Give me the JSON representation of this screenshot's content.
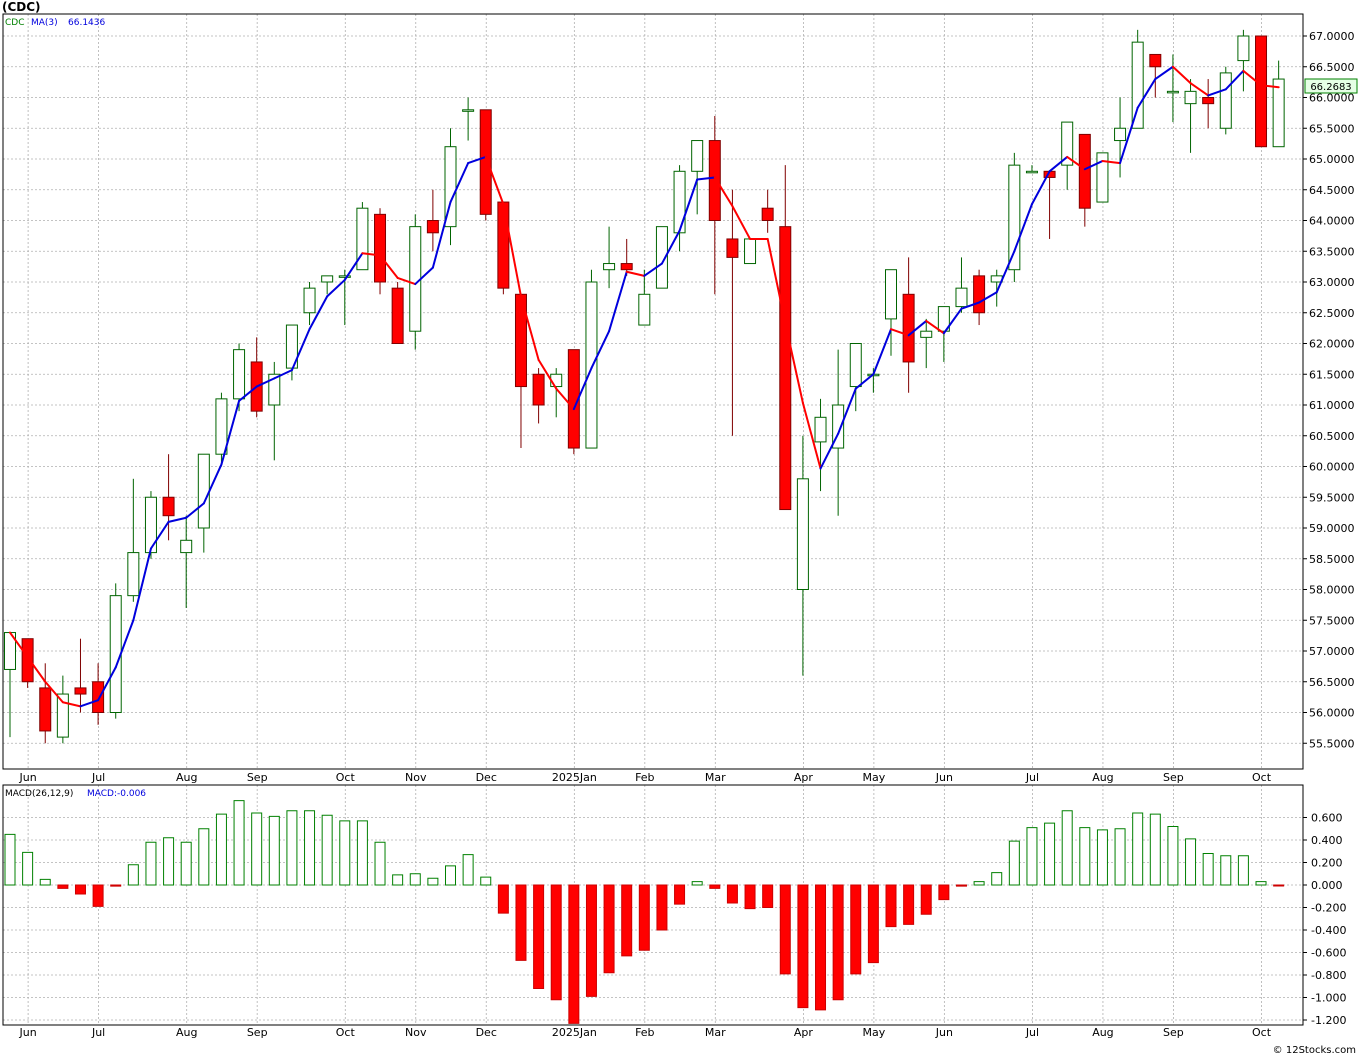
{
  "chart_data": [
    {
      "type": "candlestick",
      "title": "(CDC)",
      "legend": {
        "symbol": "CDC",
        "ma_label": "MA(3)",
        "ma_value": "66.1436"
      },
      "last_price_label": "66.2683",
      "yticks": [
        "67.0000",
        "66.5000",
        "66.0000",
        "65.5000",
        "65.0000",
        "64.5000",
        "64.0000",
        "63.5000",
        "63.0000",
        "62.5000",
        "62.0000",
        "61.5000",
        "61.0000",
        "60.5000",
        "60.0000",
        "59.5000",
        "59.0000",
        "58.5000",
        "58.0000",
        "57.5000",
        "57.0000",
        "56.5000",
        "56.0000",
        "55.5000"
      ],
      "ylim": [
        55.45,
        67.25
      ],
      "months": [
        {
          "label": "Jun",
          "index": 1
        },
        {
          "label": "Jul",
          "index": 5
        },
        {
          "label": "Aug",
          "index": 10
        },
        {
          "label": "Sep",
          "index": 14
        },
        {
          "label": "Oct",
          "index": 19
        },
        {
          "label": "Nov",
          "index": 23
        },
        {
          "label": "Dec",
          "index": 27
        },
        {
          "label": "2025Jan",
          "index": 32
        },
        {
          "label": "Feb",
          "index": 36
        },
        {
          "label": "Mar",
          "index": 40
        },
        {
          "label": "Apr",
          "index": 45
        },
        {
          "label": "May",
          "index": 49
        },
        {
          "label": "Jun",
          "index": 53
        },
        {
          "label": "Jul",
          "index": 58
        },
        {
          "label": "Aug",
          "index": 62
        },
        {
          "label": "Sep",
          "index": 66
        },
        {
          "label": "Oct",
          "index": 71
        }
      ],
      "candles": [
        {
          "o": 56.7,
          "h": 57.3,
          "l": 55.6,
          "c": 57.3
        },
        {
          "o": 57.2,
          "h": 57.2,
          "l": 56.4,
          "c": 56.5
        },
        {
          "o": 56.4,
          "h": 56.8,
          "l": 55.5,
          "c": 55.7
        },
        {
          "o": 55.6,
          "h": 56.6,
          "l": 55.5,
          "c": 56.3
        },
        {
          "o": 56.4,
          "h": 57.2,
          "l": 56.0,
          "c": 56.3
        },
        {
          "o": 56.5,
          "h": 56.8,
          "l": 55.8,
          "c": 56.0
        },
        {
          "o": 56.0,
          "h": 58.1,
          "l": 55.9,
          "c": 57.9
        },
        {
          "o": 57.9,
          "h": 59.8,
          "l": 57.8,
          "c": 58.6
        },
        {
          "o": 58.6,
          "h": 59.6,
          "l": 58.5,
          "c": 59.5
        },
        {
          "o": 59.5,
          "h": 60.2,
          "l": 58.8,
          "c": 59.2
        },
        {
          "o": 58.6,
          "h": 59.2,
          "l": 57.7,
          "c": 58.8
        },
        {
          "o": 59.0,
          "h": 60.2,
          "l": 58.6,
          "c": 60.2
        },
        {
          "o": 60.2,
          "h": 61.2,
          "l": 60.0,
          "c": 61.1
        },
        {
          "o": 61.1,
          "h": 62.0,
          "l": 60.9,
          "c": 61.9
        },
        {
          "o": 61.7,
          "h": 62.1,
          "l": 60.8,
          "c": 60.9
        },
        {
          "o": 61.0,
          "h": 61.7,
          "l": 60.1,
          "c": 61.5
        },
        {
          "o": 61.6,
          "h": 62.3,
          "l": 61.4,
          "c": 62.3
        },
        {
          "o": 62.5,
          "h": 63.0,
          "l": 62.3,
          "c": 62.9
        },
        {
          "o": 63.0,
          "h": 63.1,
          "l": 62.8,
          "c": 63.1
        },
        {
          "o": 63.1,
          "h": 63.2,
          "l": 62.3,
          "c": 63.1
        },
        {
          "o": 63.2,
          "h": 64.3,
          "l": 63.2,
          "c": 64.2
        },
        {
          "o": 64.1,
          "h": 64.2,
          "l": 62.8,
          "c": 63.0
        },
        {
          "o": 62.9,
          "h": 63.0,
          "l": 62.0,
          "c": 62.0
        },
        {
          "o": 62.2,
          "h": 64.1,
          "l": 61.9,
          "c": 63.9
        },
        {
          "o": 64.0,
          "h": 64.5,
          "l": 63.5,
          "c": 63.8
        },
        {
          "o": 63.9,
          "h": 65.5,
          "l": 63.6,
          "c": 65.2
        },
        {
          "o": 65.8,
          "h": 66.0,
          "l": 65.3,
          "c": 65.8
        },
        {
          "o": 65.8,
          "h": 65.8,
          "l": 64.0,
          "c": 64.1
        },
        {
          "o": 64.3,
          "h": 64.3,
          "l": 62.8,
          "c": 62.9
        },
        {
          "o": 62.8,
          "h": 62.8,
          "l": 60.3,
          "c": 61.3
        },
        {
          "o": 61.5,
          "h": 61.6,
          "l": 60.7,
          "c": 61.0
        },
        {
          "o": 61.3,
          "h": 61.6,
          "l": 60.8,
          "c": 61.5
        },
        {
          "o": 61.9,
          "h": 61.9,
          "l": 60.2,
          "c": 60.3
        },
        {
          "o": 60.3,
          "h": 63.2,
          "l": 60.3,
          "c": 63.0
        },
        {
          "o": 63.2,
          "h": 63.9,
          "l": 62.9,
          "c": 63.3
        },
        {
          "o": 63.3,
          "h": 63.7,
          "l": 63.1,
          "c": 63.2
        },
        {
          "o": 62.3,
          "h": 63.2,
          "l": 62.3,
          "c": 62.8
        },
        {
          "o": 62.9,
          "h": 63.8,
          "l": 62.9,
          "c": 63.9
        },
        {
          "o": 63.8,
          "h": 64.9,
          "l": 63.5,
          "c": 64.8
        },
        {
          "o": 64.8,
          "h": 65.3,
          "l": 64.1,
          "c": 65.3
        },
        {
          "o": 65.3,
          "h": 65.7,
          "l": 62.8,
          "c": 64.0
        },
        {
          "o": 63.7,
          "h": 64.5,
          "l": 60.5,
          "c": 63.4
        },
        {
          "o": 63.3,
          "h": 63.7,
          "l": 63.3,
          "c": 63.7
        },
        {
          "o": 64.2,
          "h": 64.5,
          "l": 63.8,
          "c": 64.0
        },
        {
          "o": 63.9,
          "h": 64.9,
          "l": 59.3,
          "c": 59.3
        },
        {
          "o": 58.0,
          "h": 60.5,
          "l": 56.6,
          "c": 59.8
        },
        {
          "o": 60.4,
          "h": 61.1,
          "l": 59.6,
          "c": 60.8
        },
        {
          "o": 60.3,
          "h": 61.9,
          "l": 59.2,
          "c": 61.0
        },
        {
          "o": 61.3,
          "h": 62.0,
          "l": 60.9,
          "c": 62.0
        },
        {
          "o": 61.5,
          "h": 61.6,
          "l": 61.2,
          "c": 61.5
        },
        {
          "o": 62.4,
          "h": 63.2,
          "l": 61.8,
          "c": 63.2
        },
        {
          "o": 62.8,
          "h": 63.4,
          "l": 61.2,
          "c": 61.7
        },
        {
          "o": 62.1,
          "h": 62.4,
          "l": 61.6,
          "c": 62.2
        },
        {
          "o": 62.2,
          "h": 62.6,
          "l": 61.7,
          "c": 62.6
        },
        {
          "o": 62.6,
          "h": 63.4,
          "l": 62.5,
          "c": 62.9
        },
        {
          "o": 63.1,
          "h": 63.2,
          "l": 62.3,
          "c": 62.5
        },
        {
          "o": 63.0,
          "h": 63.2,
          "l": 62.6,
          "c": 63.1
        },
        {
          "o": 63.2,
          "h": 65.1,
          "l": 63.0,
          "c": 64.9
        },
        {
          "o": 64.8,
          "h": 64.9,
          "l": 64.8,
          "c": 64.8
        },
        {
          "o": 64.8,
          "h": 64.8,
          "l": 63.7,
          "c": 64.7
        },
        {
          "o": 64.9,
          "h": 65.6,
          "l": 64.5,
          "c": 65.6
        },
        {
          "o": 65.4,
          "h": 65.4,
          "l": 63.9,
          "c": 64.2
        },
        {
          "o": 64.3,
          "h": 65.1,
          "l": 64.3,
          "c": 65.1
        },
        {
          "o": 65.3,
          "h": 66.0,
          "l": 64.7,
          "c": 65.5
        },
        {
          "o": 65.5,
          "h": 67.1,
          "l": 65.5,
          "c": 66.9
        },
        {
          "o": 66.7,
          "h": 66.7,
          "l": 66.0,
          "c": 66.5
        },
        {
          "o": 66.1,
          "h": 66.7,
          "l": 65.6,
          "c": 66.1
        },
        {
          "o": 65.9,
          "h": 66.3,
          "l": 65.1,
          "c": 66.1
        },
        {
          "o": 66.0,
          "h": 66.3,
          "l": 65.5,
          "c": 65.9
        },
        {
          "o": 65.5,
          "h": 66.5,
          "l": 65.4,
          "c": 66.4
        },
        {
          "o": 66.6,
          "h": 67.1,
          "l": 66.1,
          "c": 67.0
        },
        {
          "o": 67.0,
          "h": 67.0,
          "l": 65.2,
          "c": 65.2
        },
        {
          "o": 65.2,
          "h": 66.6,
          "l": 65.2,
          "c": 66.3
        }
      ],
      "ma_series": {
        "name": "MA(3)",
        "rising_color": "#0000dd",
        "falling_color": "#ff0000"
      }
    },
    {
      "type": "bar",
      "title": "MACD(26,12,9)",
      "legend_value": "MACD:-0.006",
      "yticks": [
        "0.600",
        "0.400",
        "0.200",
        "0.000",
        "-0.200",
        "-0.400",
        "-0.600",
        "-0.800",
        "-1.000",
        "-1.200"
      ],
      "ylim": [
        -1.25,
        0.82
      ],
      "values": [
        0.45,
        0.29,
        0.05,
        -0.03,
        -0.08,
        -0.19,
        -0.01,
        0.18,
        0.38,
        0.42,
        0.38,
        0.5,
        0.63,
        0.75,
        0.64,
        0.61,
        0.66,
        0.66,
        0.62,
        0.57,
        0.57,
        0.38,
        0.09,
        0.1,
        0.06,
        0.17,
        0.27,
        0.07,
        -0.25,
        -0.67,
        -0.92,
        -1.02,
        -1.23,
        -0.99,
        -0.78,
        -0.63,
        -0.58,
        -0.4,
        -0.17,
        0.03,
        -0.03,
        -0.16,
        -0.21,
        -0.2,
        -0.79,
        -1.09,
        -1.11,
        -1.02,
        -0.79,
        -0.69,
        -0.37,
        -0.35,
        -0.26,
        -0.13,
        -0.01,
        0.03,
        0.11,
        0.39,
        0.51,
        0.55,
        0.66,
        0.51,
        0.49,
        0.5,
        0.64,
        0.63,
        0.52,
        0.41,
        0.28,
        0.26,
        0.26,
        0.03,
        -0.006
      ],
      "positive_color": "#008000",
      "negative_color": "#ff0000"
    }
  ],
  "footer": "© 12Stocks.com"
}
